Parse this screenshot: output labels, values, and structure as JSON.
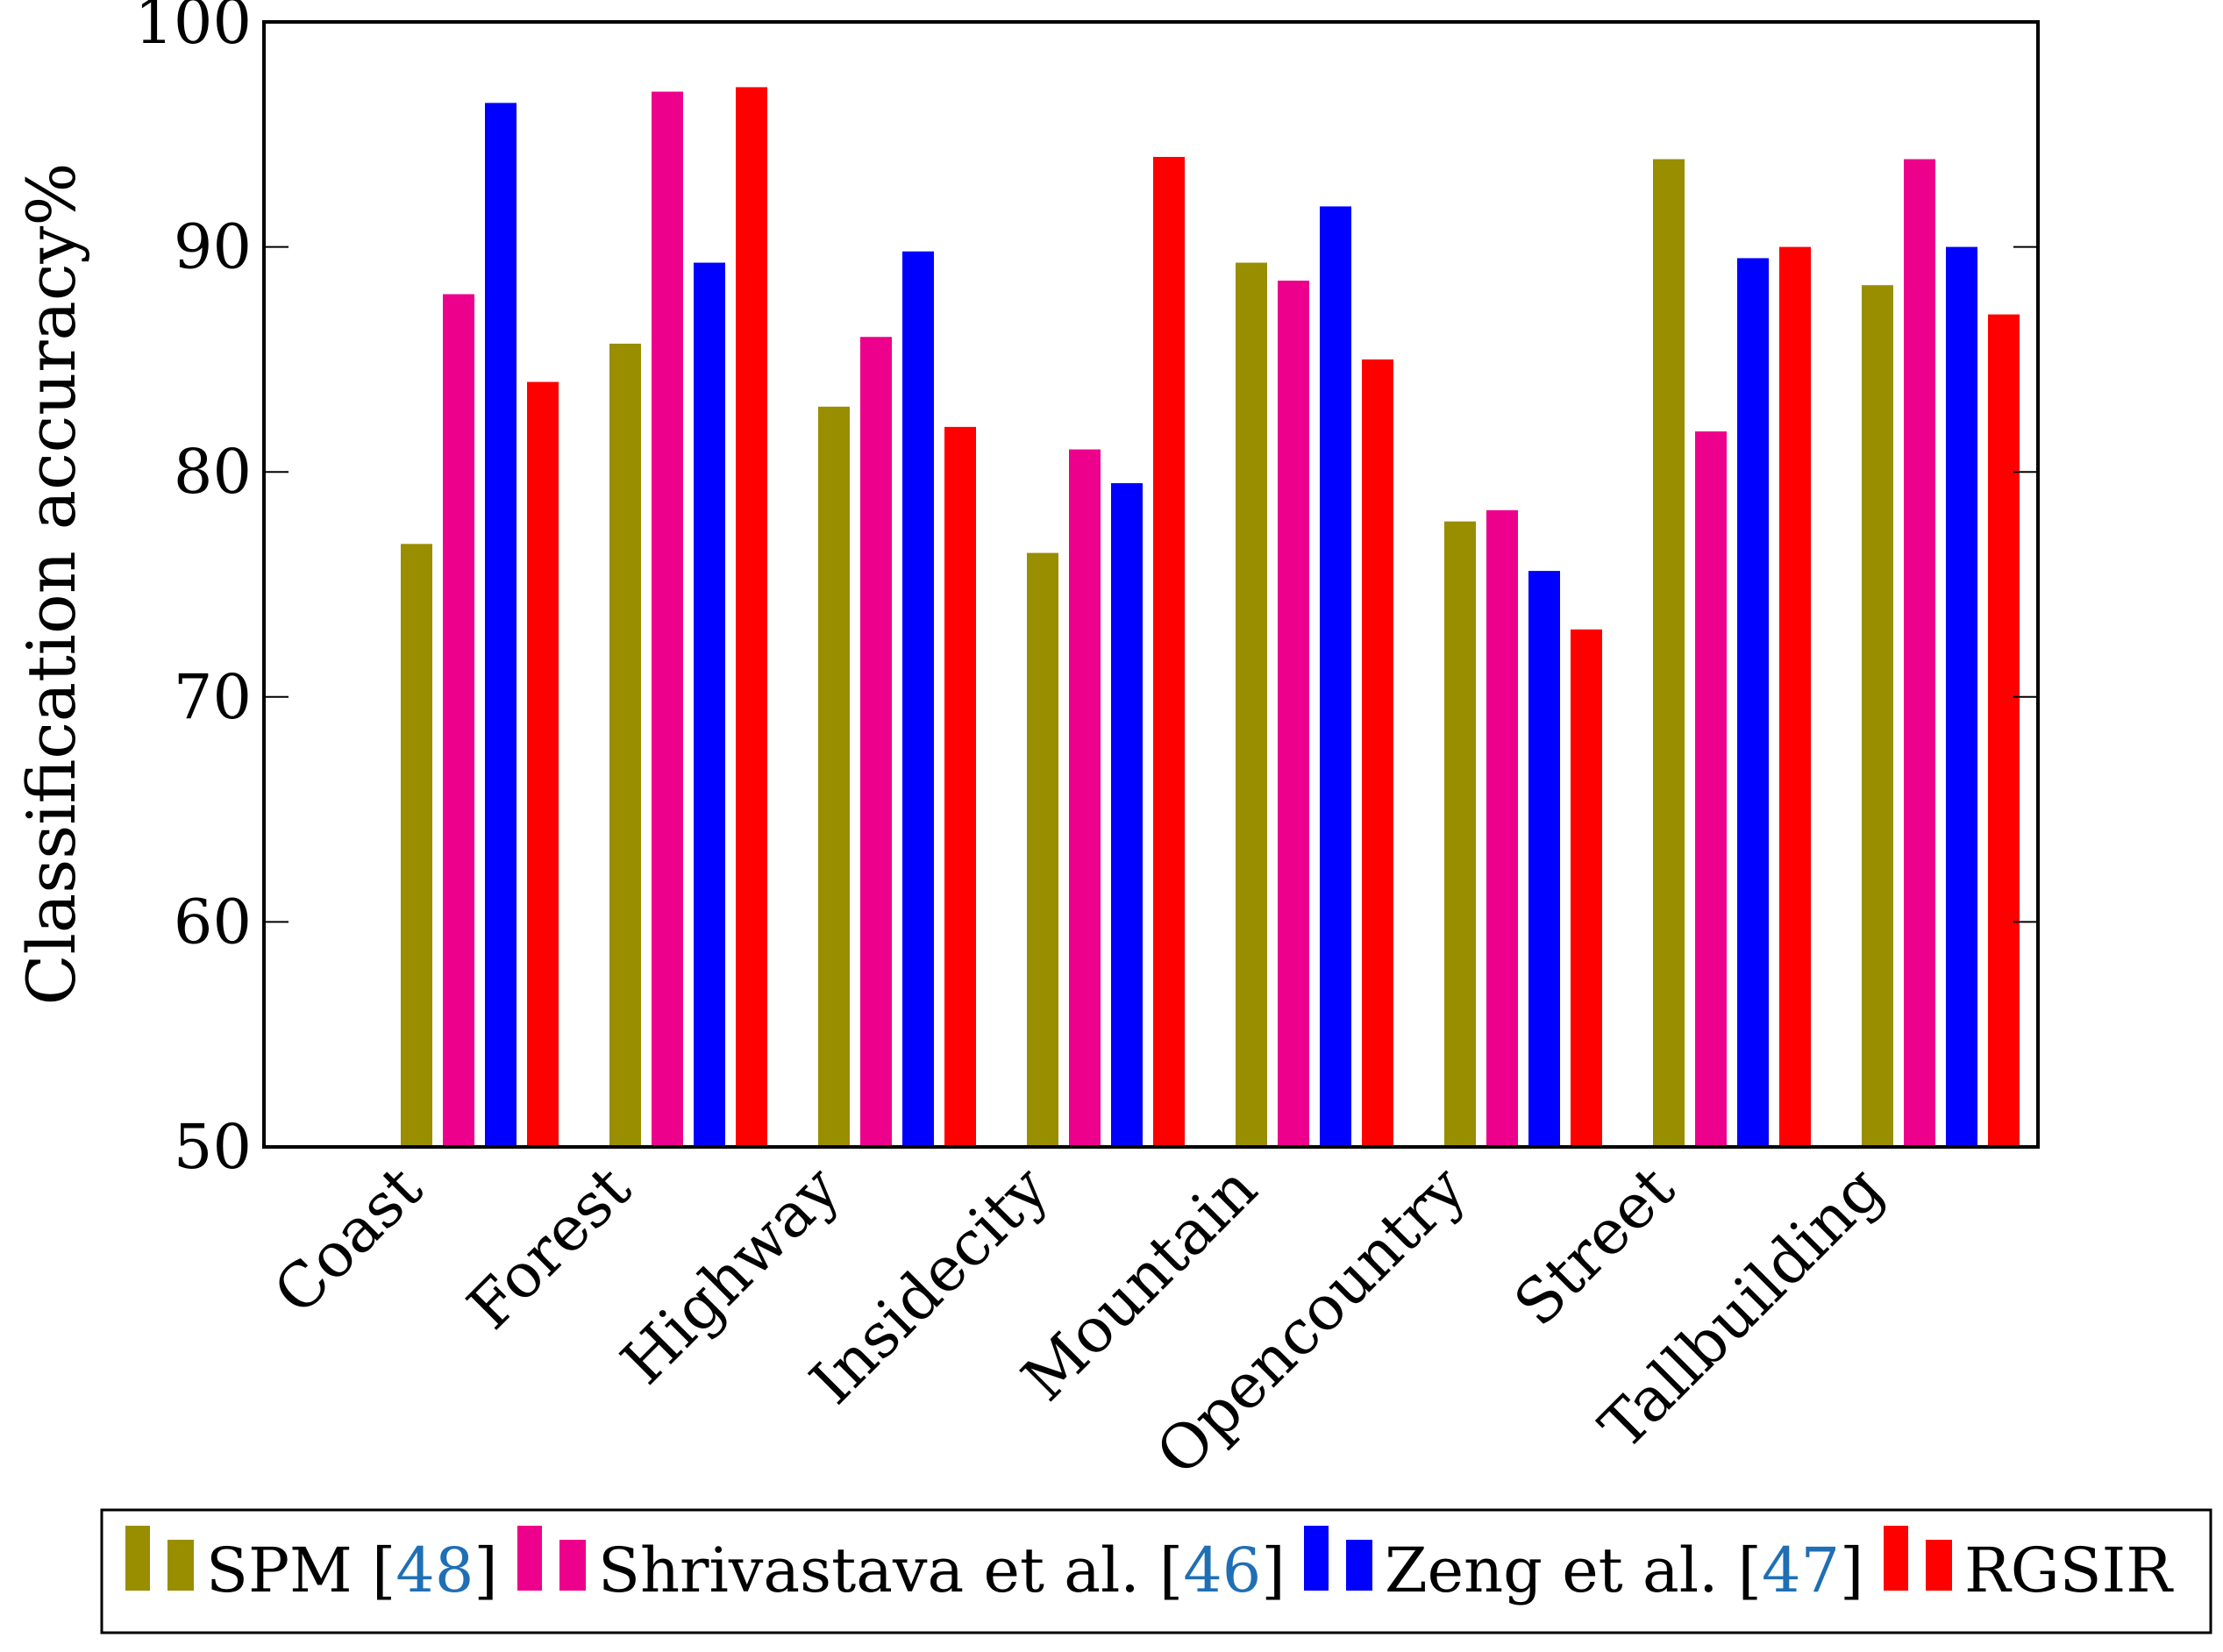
{
  "chart_data": {
    "type": "bar",
    "title": "",
    "xlabel": "",
    "ylabel": "Classification accuracy%",
    "ylim": [
      50,
      100
    ],
    "yticks": [
      50,
      60,
      70,
      80,
      90,
      100
    ],
    "grid": false,
    "legend_position": "bottom",
    "categories": [
      "Coast",
      "Forest",
      "Highway",
      "Insidecity",
      "Mountain",
      "Opencountry",
      "Street",
      "Tallbuilding"
    ],
    "series": [
      {
        "name": "SPM [48]",
        "label": "SPM [",
        "ref": "48",
        "close": "]",
        "color": "#998d00",
        "values": [
          76.8,
          85.7,
          82.9,
          76.4,
          89.3,
          77.8,
          93.9,
          88.3
        ]
      },
      {
        "name": "Shrivastava et al. [46]",
        "label": "Shrivastava et al. [",
        "ref": "46",
        "close": "]",
        "color": "#ec008c",
        "values": [
          87.9,
          96.9,
          86.0,
          81.0,
          88.5,
          78.3,
          81.8,
          93.9
        ]
      },
      {
        "name": "Zeng et al. [47]",
        "label": "Zeng et al. [",
        "ref": "47",
        "close": "]",
        "color": "#0000ff",
        "values": [
          96.4,
          89.3,
          89.8,
          79.5,
          91.8,
          75.6,
          89.5,
          90.0
        ]
      },
      {
        "name": "RGSIR",
        "label": "RGSIR",
        "ref": "",
        "close": "",
        "color": "#ff0000",
        "values": [
          84.0,
          97.1,
          82.0,
          94.0,
          85.0,
          73.0,
          90.0,
          87.0
        ]
      }
    ]
  }
}
